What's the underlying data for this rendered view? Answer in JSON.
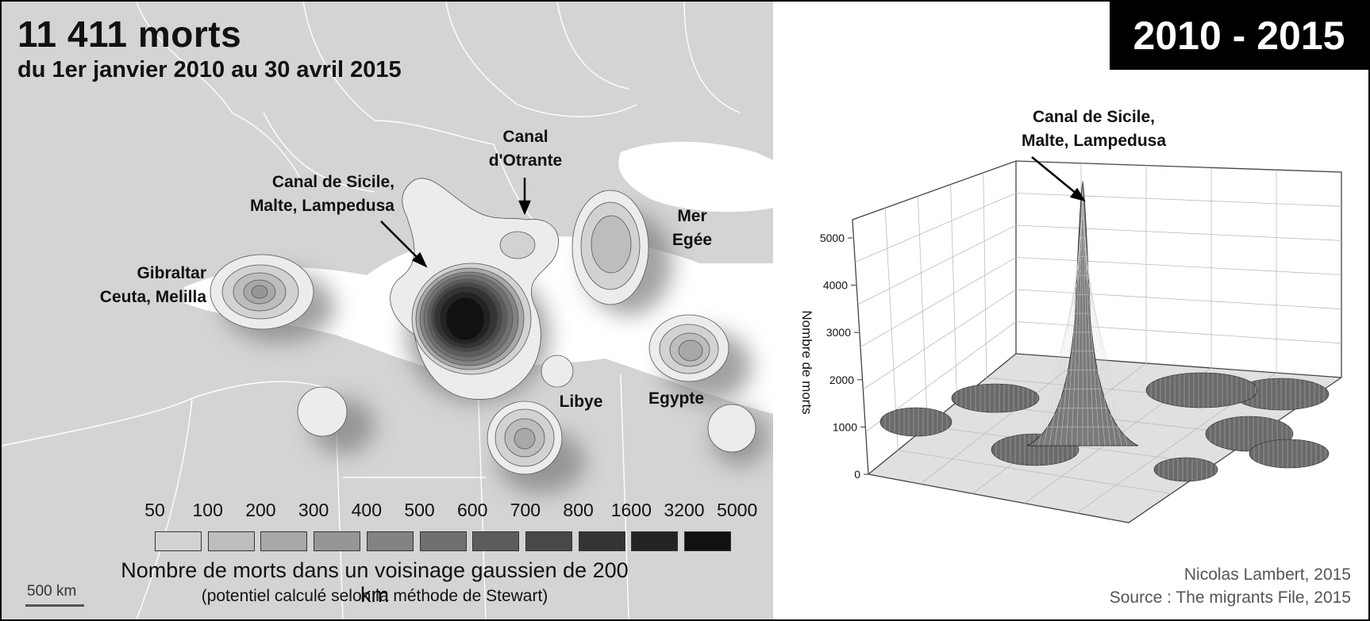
{
  "header": {
    "title": "11 411 morts",
    "subtitle": "du 1er janvier 2010 au 30 avril 2015",
    "period": "2010 - 2015"
  },
  "map": {
    "scale_label": "500 km",
    "labels": {
      "sicile": [
        "Canal de Sicile,",
        "Malte, Lampedusa"
      ],
      "otrante": [
        "Canal",
        "d'Otrante"
      ],
      "egee": [
        "Mer",
        "Egée"
      ],
      "gibraltar": [
        "Gibraltar",
        "Ceuta, Melilla"
      ],
      "libye": "Libye",
      "egypte": "Egypte"
    }
  },
  "legend": {
    "classes": [
      "50",
      "100",
      "200",
      "300",
      "400",
      "500",
      "600",
      "700",
      "800",
      "1600",
      "3200",
      "5000"
    ],
    "colors": [
      "#ececec",
      "#d2d2d2",
      "#bdbdbd",
      "#a8a8a8",
      "#969696",
      "#838383",
      "#707070",
      "#5c5c5c",
      "#484848",
      "#343434",
      "#232323",
      "#111111"
    ],
    "title": "Nombre de morts dans un voisinage gaussien de 200 km",
    "subtitle": "(potentiel calculé selon la méthode de Stewart)"
  },
  "chart_data": {
    "type": "surface",
    "zlabel": "Nombre de morts",
    "zticks": [
      0,
      1000,
      2000,
      3000,
      4000,
      5000
    ],
    "zlim": [
      0,
      5800
    ],
    "grid": true,
    "annotation": "Canal de Sicile, Malte, Lampedusa",
    "peak_value": 5600
  },
  "credits": {
    "author": "Nicolas Lambert, 2015",
    "source": "Source : The migrants File, 2015"
  }
}
